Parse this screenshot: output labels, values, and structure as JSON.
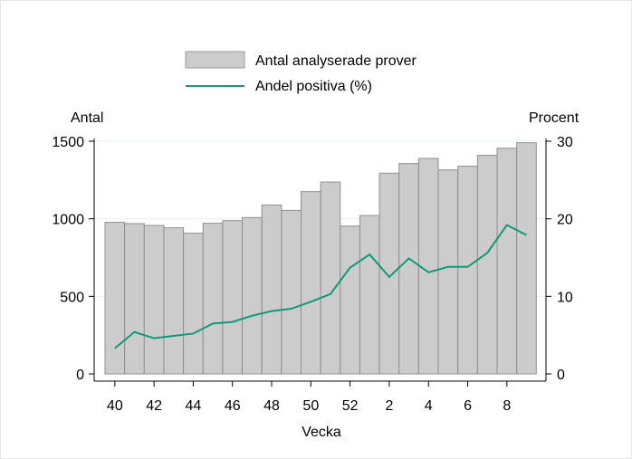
{
  "chart_data": {
    "type": "bar",
    "xlabel": "Vecka",
    "ylabel_left": "Antal",
    "ylabel_right": "Procent",
    "categories": [
      "40",
      "41",
      "42",
      "43",
      "44",
      "45",
      "46",
      "47",
      "48",
      "49",
      "50",
      "51",
      "52",
      "1",
      "2",
      "3",
      "4",
      "5",
      "6",
      "7",
      "8",
      "9"
    ],
    "x_tick_labels": [
      "40",
      "42",
      "44",
      "46",
      "48",
      "50",
      "52",
      "2",
      "4",
      "6",
      "8"
    ],
    "ylim_left": [
      0,
      1500
    ],
    "yticks_left": [
      "0",
      "500",
      "1000",
      "1500"
    ],
    "ylim_right": [
      0,
      30
    ],
    "yticks_right": [
      "0",
      "10",
      "20",
      "30"
    ],
    "grid": true,
    "legend_position": "top",
    "series": [
      {
        "name": "Antal analyserade prover",
        "type": "bar",
        "axis": "left",
        "color": "#cccccc",
        "values": [
          977,
          969,
          957,
          942,
          907,
          971,
          988,
          1008,
          1089,
          1054,
          1175,
          1237,
          953,
          1021,
          1294,
          1356,
          1389,
          1315,
          1339,
          1409,
          1455,
          1490
        ]
      },
      {
        "name": "Andel positiva (%)",
        "type": "line",
        "axis": "right",
        "color": "#0f9a78",
        "values": [
          3.3,
          5.4,
          4.6,
          4.9,
          5.2,
          6.5,
          6.7,
          7.5,
          8.1,
          8.4,
          9.3,
          10.3,
          13.7,
          15.4,
          12.5,
          14.9,
          13.1,
          13.8,
          13.8,
          15.6,
          19.2,
          17.9
        ]
      }
    ]
  }
}
